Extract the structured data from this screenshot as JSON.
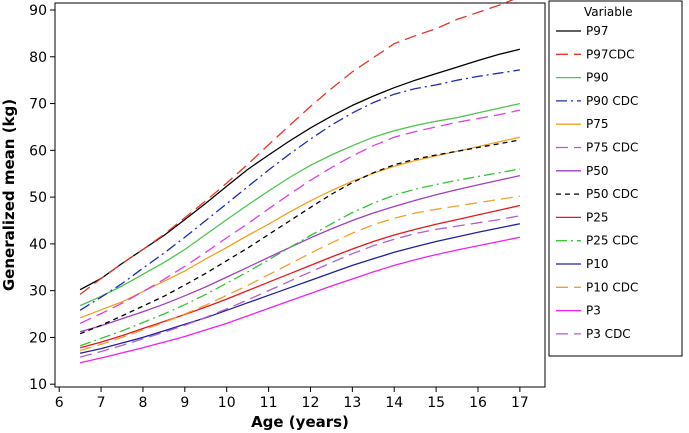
{
  "chart_data": {
    "type": "line",
    "xlabel": "Age (years)",
    "ylabel": "Generalized mean (kg)",
    "xlim": [
      5.9,
      17.6
    ],
    "ylim": [
      9.4,
      91.5
    ],
    "xticks": [
      6,
      7,
      8,
      9,
      10,
      11,
      12,
      13,
      14,
      15,
      16,
      17
    ],
    "yticks": [
      10,
      20,
      30,
      40,
      50,
      60,
      70,
      80,
      90
    ],
    "legend_title": "Variable",
    "legend_position": "right",
    "series": [
      {
        "name": "P97",
        "color": "#000000",
        "dash": "solid",
        "x": [
          6.5,
          7,
          7.5,
          8,
          8.5,
          9,
          9.5,
          10,
          10.5,
          11,
          11.5,
          12,
          12.5,
          13,
          13.5,
          14,
          14.5,
          15,
          15.5,
          16,
          16.5,
          17
        ],
        "y": [
          30.2,
          32.6,
          35.8,
          38.8,
          41.8,
          45.2,
          48.7,
          52.3,
          55.9,
          59.0,
          62.0,
          64.8,
          67.3,
          69.6,
          71.6,
          73.4,
          75.0,
          76.4,
          77.8,
          79.2,
          80.5,
          81.6
        ]
      },
      {
        "name": "P97CDC",
        "color": "#e8352a",
        "dash": "long",
        "x": [
          6.5,
          7,
          7.5,
          8,
          8.5,
          9,
          9.5,
          10,
          10.5,
          11,
          11.5,
          12,
          12.5,
          13,
          13.5,
          14,
          14.5,
          15,
          15.5,
          16,
          16.5,
          17
        ],
        "y": [
          29.2,
          32.6,
          35.8,
          38.8,
          42.0,
          45.6,
          49.2,
          53.0,
          57.0,
          61.2,
          65.3,
          69.4,
          73.2,
          76.8,
          79.8,
          82.8,
          84.5,
          86.0,
          88.0,
          89.5,
          91.0,
          92.8
        ]
      },
      {
        "name": "P90",
        "color": "#4fc24f",
        "dash": "solid",
        "x": [
          6.5,
          7,
          7.5,
          8,
          8.5,
          9,
          9.5,
          10,
          10.5,
          11,
          11.5,
          12,
          12.5,
          13,
          13.5,
          14,
          14.5,
          15,
          15.5,
          16,
          16.5,
          17
        ],
        "y": [
          26.8,
          28.8,
          31.0,
          33.5,
          36.0,
          38.8,
          42.0,
          45.2,
          48.3,
          51.3,
          54.2,
          56.8,
          59.0,
          61.0,
          62.8,
          64.2,
          65.3,
          66.2,
          67.0,
          68.0,
          69.0,
          70.0
        ]
      },
      {
        "name": "P90 CDC",
        "color": "#1f2bb8",
        "dash": "dashdot",
        "x": [
          6.5,
          7,
          7.5,
          8,
          8.5,
          9,
          9.5,
          10,
          10.5,
          11,
          11.5,
          12,
          12.5,
          13,
          13.5,
          14,
          14.5,
          15,
          15.5,
          16,
          16.5,
          17
        ],
        "y": [
          25.8,
          28.6,
          31.5,
          34.8,
          38.0,
          41.4,
          45.0,
          48.6,
          52.2,
          55.8,
          59.2,
          62.4,
          65.4,
          68.0,
          70.2,
          72.0,
          73.2,
          74.0,
          75.0,
          75.8,
          76.5,
          77.2
        ]
      },
      {
        "name": "P75",
        "color": "#f0a020",
        "dash": "solid",
        "x": [
          6.5,
          7,
          7.5,
          8,
          8.5,
          9,
          9.5,
          10,
          10.5,
          11,
          11.5,
          12,
          12.5,
          13,
          13.5,
          14,
          14.5,
          15,
          15.5,
          16,
          16.5,
          17
        ],
        "y": [
          24.2,
          25.9,
          27.6,
          29.8,
          32.0,
          34.2,
          36.8,
          39.2,
          41.8,
          44.2,
          46.8,
          49.2,
          51.4,
          53.4,
          55.1,
          56.6,
          57.8,
          58.8,
          59.8,
          60.8,
          61.8,
          62.8
        ]
      },
      {
        "name": "P75 CDC",
        "color": "#e040e0",
        "dash": "long",
        "x": [
          6.5,
          7,
          7.5,
          8,
          8.5,
          9,
          9.5,
          10,
          10.5,
          11,
          11.5,
          12,
          12.5,
          13,
          13.5,
          14,
          14.5,
          15,
          15.5,
          16,
          16.5,
          17
        ],
        "y": [
          23.0,
          25.1,
          27.3,
          29.8,
          32.4,
          35.2,
          38.2,
          41.3,
          44.3,
          47.5,
          50.6,
          53.6,
          56.3,
          58.8,
          61.0,
          62.8,
          64.0,
          65.0,
          66.0,
          66.8,
          67.6,
          68.6
        ]
      },
      {
        "name": "P50",
        "color": "#a040c0",
        "dash": "solid",
        "x": [
          6.5,
          7,
          7.5,
          8,
          8.5,
          9,
          9.5,
          10,
          10.5,
          11,
          11.5,
          12,
          12.5,
          13,
          13.5,
          14,
          14.5,
          15,
          15.5,
          16,
          16.5,
          17
        ],
        "y": [
          21.2,
          22.5,
          24.0,
          25.5,
          27.1,
          28.9,
          30.8,
          32.9,
          35.0,
          37.1,
          39.2,
          41.3,
          43.2,
          45.0,
          46.6,
          48.0,
          49.3,
          50.5,
          51.6,
          52.6,
          53.6,
          54.6
        ]
      },
      {
        "name": "P50 CDC",
        "color": "#000000",
        "dash": "short",
        "x": [
          6.5,
          7,
          7.5,
          8,
          8.5,
          9,
          9.5,
          10,
          10.5,
          11,
          11.5,
          12,
          12.5,
          13,
          13.5,
          14,
          14.5,
          15,
          15.5,
          16,
          16.5,
          17
        ],
        "y": [
          20.8,
          22.6,
          24.6,
          26.7,
          28.8,
          31.2,
          33.7,
          36.4,
          39.1,
          42.0,
          44.9,
          47.8,
          50.6,
          53.1,
          55.2,
          56.9,
          58.1,
          59.0,
          59.8,
          60.6,
          61.4,
          62.2
        ]
      },
      {
        "name": "P25",
        "color": "#e81818",
        "dash": "solid",
        "x": [
          6.5,
          7,
          7.5,
          8,
          8.5,
          9,
          9.5,
          10,
          10.5,
          11,
          11.5,
          12,
          12.5,
          13,
          13.5,
          14,
          14.5,
          15,
          15.5,
          16,
          16.5,
          17
        ],
        "y": [
          17.8,
          19.0,
          20.4,
          21.9,
          23.4,
          24.9,
          26.5,
          28.2,
          30.0,
          31.8,
          33.6,
          35.4,
          37.2,
          38.9,
          40.5,
          41.9,
          43.1,
          44.2,
          45.2,
          46.2,
          47.2,
          48.2
        ]
      },
      {
        "name": "P25 CDC",
        "color": "#3ac23a",
        "dash": "dashdot",
        "x": [
          6.5,
          7,
          7.5,
          8,
          8.5,
          9,
          9.5,
          10,
          10.5,
          11,
          11.5,
          12,
          12.5,
          13,
          13.5,
          14,
          14.5,
          15,
          15.5,
          16,
          16.5,
          17
        ],
        "y": [
          18.2,
          19.8,
          21.4,
          23.2,
          25.0,
          27.0,
          29.2,
          31.6,
          34.0,
          36.6,
          39.2,
          41.8,
          44.3,
          46.7,
          48.7,
          50.4,
          51.7,
          52.7,
          53.6,
          54.4,
          55.2,
          56.0
        ]
      },
      {
        "name": "P10",
        "color": "#2020a0",
        "dash": "solid",
        "x": [
          6.5,
          7,
          7.5,
          8,
          8.5,
          9,
          9.5,
          10,
          10.5,
          11,
          11.5,
          12,
          12.5,
          13,
          13.5,
          14,
          14.5,
          15,
          15.5,
          16,
          16.5,
          17
        ],
        "y": [
          16.6,
          17.6,
          18.8,
          20.0,
          21.4,
          22.8,
          24.2,
          25.8,
          27.4,
          29.0,
          30.6,
          32.2,
          33.8,
          35.4,
          36.8,
          38.2,
          39.4,
          40.5,
          41.5,
          42.5,
          43.4,
          44.3
        ]
      },
      {
        "name": "P10 CDC",
        "color": "#f0a030",
        "dash": "long",
        "x": [
          6.5,
          7,
          7.5,
          8,
          8.5,
          9,
          9.5,
          10,
          10.5,
          11,
          11.5,
          12,
          12.5,
          13,
          13.5,
          14,
          14.5,
          15,
          15.5,
          16,
          16.5,
          17
        ],
        "y": [
          17.2,
          18.5,
          20.0,
          21.6,
          23.2,
          25.0,
          26.9,
          29.0,
          31.1,
          33.4,
          35.7,
          38.0,
          40.2,
          42.3,
          44.1,
          45.5,
          46.6,
          47.4,
          48.1,
          48.8,
          49.5,
          50.2
        ]
      },
      {
        "name": "P3",
        "color": "#f020f0",
        "dash": "solid",
        "x": [
          6.5,
          7,
          7.5,
          8,
          8.5,
          9,
          9.5,
          10,
          10.5,
          11,
          11.5,
          12,
          12.5,
          13,
          13.5,
          14,
          14.5,
          15,
          15.5,
          16,
          16.5,
          17
        ],
        "y": [
          14.6,
          15.6,
          16.7,
          17.8,
          19.0,
          20.2,
          21.6,
          23.0,
          24.6,
          26.2,
          27.8,
          29.4,
          31.0,
          32.5,
          34.0,
          35.4,
          36.6,
          37.7,
          38.7,
          39.6,
          40.5,
          41.4
        ]
      },
      {
        "name": "P3 CDC",
        "color": "#b060d0",
        "dash": "long",
        "x": [
          6.5,
          7,
          7.5,
          8,
          8.5,
          9,
          9.5,
          10,
          10.5,
          11,
          11.5,
          12,
          12.5,
          13,
          13.5,
          14,
          14.5,
          15,
          15.5,
          16,
          16.5,
          17
        ],
        "y": [
          15.8,
          17.0,
          18.3,
          19.7,
          21.1,
          22.6,
          24.3,
          26.1,
          28.0,
          30.0,
          32.0,
          34.0,
          36.0,
          37.9,
          39.6,
          41.0,
          42.2,
          43.1,
          43.8,
          44.5,
          45.2,
          46.0
        ]
      }
    ]
  }
}
